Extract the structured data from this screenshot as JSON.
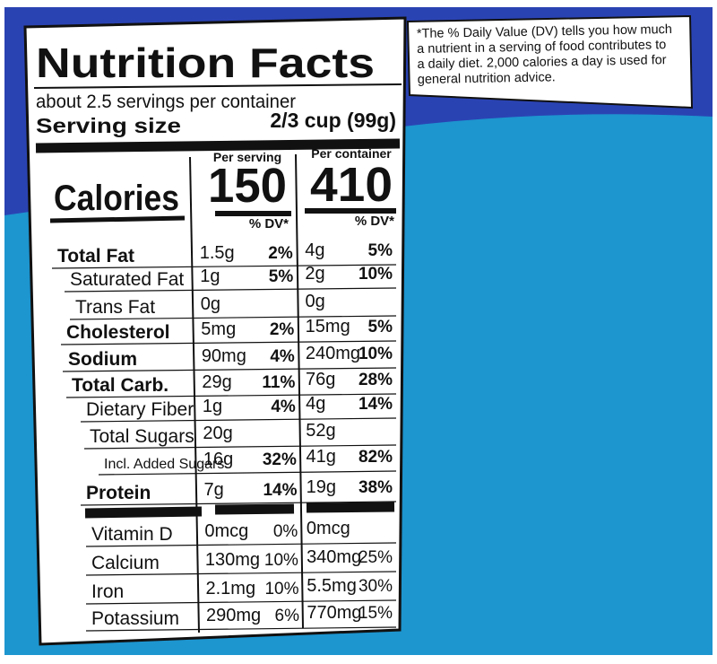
{
  "title": "Nutrition Facts",
  "servings": "about 2.5 servings per container",
  "serving_size": {
    "label": "Serving size",
    "value": "2/3 cup (99g)"
  },
  "calories": {
    "label": "Calories",
    "per_serving_header": "Per serving",
    "per_serving": "150",
    "per_container_header": "Per container",
    "per_container": "410"
  },
  "dv_header": "% DV*",
  "nutrients": [
    {
      "name": "Total Fat",
      "serving_amount": "1.5g",
      "serving_dv": "2%",
      "container_amount": "4g",
      "container_dv": "5%"
    },
    {
      "name": "Saturated Fat",
      "serving_amount": "1g",
      "serving_dv": "5%",
      "container_amount": "2g",
      "container_dv": "10%"
    },
    {
      "name": "Trans Fat",
      "serving_amount": "0g",
      "container_amount": "0g"
    },
    {
      "name": "Cholesterol",
      "serving_amount": "5mg",
      "serving_dv": "2%",
      "container_amount": "15mg",
      "container_dv": "5%"
    },
    {
      "name": "Sodium",
      "serving_amount": "90mg",
      "serving_dv": "4%",
      "container_amount": "240mg",
      "container_dv": "10%"
    },
    {
      "name": "Total Carb.",
      "serving_amount": "29g",
      "serving_dv": "11%",
      "container_amount": "76g",
      "container_dv": "28%"
    },
    {
      "name": "Dietary Fiber",
      "serving_amount": "1g",
      "serving_dv": "4%",
      "container_amount": "4g",
      "container_dv": "14%"
    },
    {
      "name": "Total Sugars",
      "serving_amount": "20g",
      "container_amount": "52g"
    },
    {
      "name": "Incl. Added Sugars",
      "serving_amount": "16g",
      "serving_dv": "32%",
      "container_amount": "41g",
      "container_dv": "82%"
    },
    {
      "name": "Protein",
      "serving_amount": "7g",
      "serving_dv": "14%",
      "container_amount": "19g",
      "container_dv": "38%"
    }
  ],
  "vitamins": [
    {
      "name": "Vitamin D",
      "serving_amount": "0mcg",
      "serving_dv": "0%",
      "container_amount": "0mcg"
    },
    {
      "name": "Calcium",
      "serving_amount": "130mg",
      "serving_dv": "10%",
      "container_amount": "340mg",
      "container_dv": "25%"
    },
    {
      "name": "Iron",
      "serving_amount": "2.1mg",
      "serving_dv": "10%",
      "container_amount": "5.5mg",
      "container_dv": "30%"
    },
    {
      "name": "Potassium",
      "serving_amount": "290mg",
      "serving_dv": "6%",
      "container_amount": "770mg",
      "container_dv": "15%"
    }
  ],
  "footnote": [
    "*The % Daily Value (DV) tells you how much",
    "a nutrient in a serving of food contributes to",
    "a daily diet. 2,000 calories a day is used for",
    "general nutrition advice."
  ]
}
